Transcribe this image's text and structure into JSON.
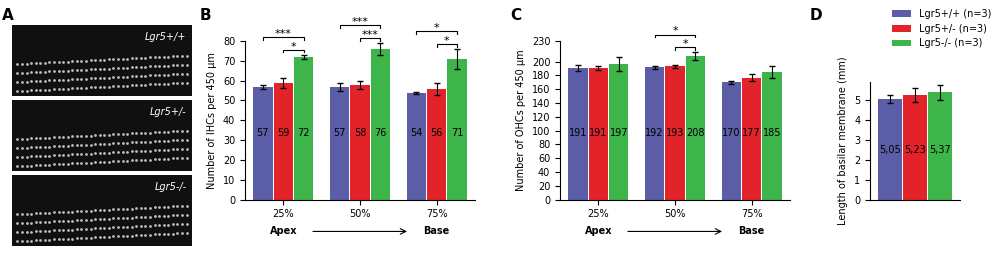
{
  "image_panel": {
    "panel": "A",
    "labels": [
      "Lgr5+/+",
      "Lgr5+/-",
      "Lgr5-/-"
    ]
  },
  "chart_data": [
    {
      "panel": "B",
      "type": "bar",
      "y_label": "Number of IHCs per 450 µm",
      "categories": [
        "25%",
        "50%",
        "75%"
      ],
      "annotations": [
        "Apex",
        "Base"
      ],
      "ylim": [
        0,
        80
      ],
      "yticks": [
        0,
        10,
        20,
        30,
        40,
        50,
        60,
        70,
        80
      ],
      "data_labels": true,
      "series": [
        {
          "name": "Lgr5+/+ (n=3)",
          "color": "#5b5ea6",
          "values": [
            57,
            57,
            54
          ],
          "errors": [
            1,
            2,
            0.5
          ]
        },
        {
          "name": "Lgr5+/- (n=3)",
          "color": "#e2232a",
          "values": [
            59,
            58,
            56
          ],
          "errors": [
            2.5,
            2,
            3
          ]
        },
        {
          "name": "Lgr5-/- (n=3)",
          "color": "#3db54a",
          "values": [
            72,
            76,
            71
          ],
          "errors": [
            1,
            3,
            5
          ]
        }
      ],
      "significance": [
        {
          "category": "25%",
          "from": "Lgr5+/+ (n=3)",
          "to": "Lgr5-/- (n=3)",
          "label": "***"
        },
        {
          "category": "25%",
          "from": "Lgr5+/- (n=3)",
          "to": "Lgr5-/- (n=3)",
          "label": "*"
        },
        {
          "category": "50%",
          "from": "Lgr5+/+ (n=3)",
          "to": "Lgr5-/- (n=3)",
          "label": "***"
        },
        {
          "category": "50%",
          "from": "Lgr5+/- (n=3)",
          "to": "Lgr5-/- (n=3)",
          "label": "***"
        },
        {
          "category": "75%",
          "from": "Lgr5+/+ (n=3)",
          "to": "Lgr5-/- (n=3)",
          "label": "*"
        },
        {
          "category": "75%",
          "from": "Lgr5+/- (n=3)",
          "to": "Lgr5-/- (n=3)",
          "label": "*"
        }
      ]
    },
    {
      "panel": "C",
      "type": "bar",
      "y_label": "Number of OHCs per 450 µm",
      "categories": [
        "25%",
        "50%",
        "75%"
      ],
      "annotations": [
        "Apex",
        "Base"
      ],
      "ylim": [
        0,
        230
      ],
      "yticks": [
        0,
        20,
        40,
        60,
        80,
        100,
        120,
        140,
        160,
        180,
        200,
        230
      ],
      "data_labels": true,
      "series": [
        {
          "name": "Lgr5+/+ (n=3)",
          "color": "#5b5ea6",
          "values": [
            191,
            192,
            170
          ],
          "errors": [
            4,
            2,
            2
          ]
        },
        {
          "name": "Lgr5+/- (n=3)",
          "color": "#e2232a",
          "values": [
            191,
            193,
            177
          ],
          "errors": [
            3,
            2,
            5
          ]
        },
        {
          "name": "Lgr5-/- (n=3)",
          "color": "#3db54a",
          "values": [
            197,
            208,
            185
          ],
          "errors": [
            10,
            6,
            8
          ]
        }
      ],
      "significance": [
        {
          "category": "50%",
          "from": "Lgr5+/+ (n=3)",
          "to": "Lgr5-/- (n=3)",
          "label": "*"
        },
        {
          "category": "50%",
          "from": "Lgr5+/- (n=3)",
          "to": "Lgr5-/- (n=3)",
          "label": "*"
        }
      ]
    },
    {
      "panel": "D",
      "type": "bar",
      "y_label": "Length of basilar membrane (mm)",
      "categories": [
        null
      ],
      "tick_labels": "y",
      "legend": "upper right",
      "ylim": [
        0,
        5.9
      ],
      "yticks": [
        0,
        1,
        2,
        3,
        4,
        5
      ],
      "data_labels": true,
      "series": [
        {
          "name": "Lgr5+/+ (n=3)",
          "color": "#5b5ea6",
          "values": [
            5.05
          ],
          "value_labels": [
            "5,05"
          ],
          "errors": [
            0.2
          ]
        },
        {
          "name": "Lgr5+/- (n=3)",
          "color": "#e2232a",
          "values": [
            5.23
          ],
          "value_labels": [
            "5,23"
          ],
          "errors": [
            0.35
          ]
        },
        {
          "name": "Lgr5-/- (n=3)",
          "color": "#3db54a",
          "values": [
            5.37
          ],
          "value_labels": [
            "5,37"
          ],
          "errors": [
            0.4
          ]
        }
      ]
    }
  ]
}
